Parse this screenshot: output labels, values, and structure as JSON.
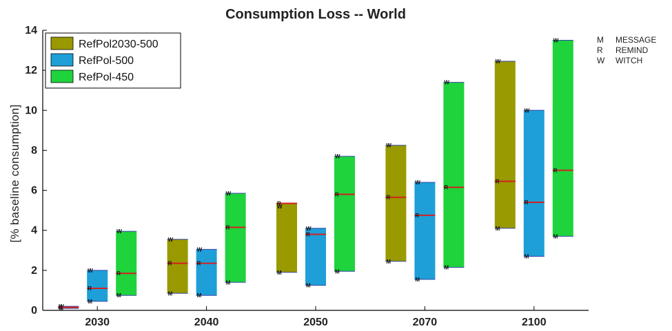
{
  "chart_data": {
    "type": "bar",
    "subtype": "floating-range",
    "title": "Consumption Loss -- World",
    "xlabel": "",
    "ylabel": "[% baseline consumption]",
    "ylim": [
      0,
      14
    ],
    "yticks": [
      0,
      2,
      4,
      6,
      8,
      10,
      12,
      14
    ],
    "categories": [
      "2030",
      "2040",
      "2050",
      "2070",
      "2100"
    ],
    "grid": false,
    "legend_position": "top-left",
    "series": [
      {
        "name": "RefPol2030-500",
        "color": "#999900",
        "ranges": [
          {
            "low": 0.1,
            "high": 0.2,
            "markers": [
              {
                "model": "M",
                "value": 0.1
              },
              {
                "model": "W",
                "value": 0.2
              },
              {
                "model": "R",
                "value": 0.15
              }
            ]
          },
          {
            "low": 0.85,
            "high": 3.55,
            "markers": [
              {
                "model": "W",
                "value": 3.55
              },
              {
                "model": "R",
                "value": 2.35
              },
              {
                "model": "M",
                "value": 0.85
              }
            ]
          },
          {
            "low": 1.9,
            "high": 5.35,
            "markers": [
              {
                "model": "R",
                "value": 5.35
              },
              {
                "model": "W",
                "value": 5.2
              },
              {
                "model": "M",
                "value": 1.9
              }
            ]
          },
          {
            "low": 2.45,
            "high": 8.25,
            "markers": [
              {
                "model": "W",
                "value": 8.25
              },
              {
                "model": "R",
                "value": 5.65
              },
              {
                "model": "M",
                "value": 2.45
              }
            ]
          },
          {
            "low": 4.1,
            "high": 12.45,
            "markers": [
              {
                "model": "W",
                "value": 12.45
              },
              {
                "model": "R",
                "value": 6.45
              },
              {
                "model": "M",
                "value": 4.1
              }
            ]
          }
        ]
      },
      {
        "name": "RefPol-500",
        "color": "#1e9fd8",
        "ranges": [
          {
            "low": 0.45,
            "high": 2.0,
            "markers": [
              {
                "model": "W",
                "value": 2.0
              },
              {
                "model": "R",
                "value": 1.1
              },
              {
                "model": "M",
                "value": 0.45
              }
            ]
          },
          {
            "low": 0.75,
            "high": 3.05,
            "markers": [
              {
                "model": "W",
                "value": 3.05
              },
              {
                "model": "R",
                "value": 2.35
              },
              {
                "model": "M",
                "value": 0.75
              }
            ]
          },
          {
            "low": 1.25,
            "high": 4.1,
            "markers": [
              {
                "model": "W",
                "value": 4.1
              },
              {
                "model": "R",
                "value": 3.8
              },
              {
                "model": "M",
                "value": 1.25
              }
            ]
          },
          {
            "low": 1.55,
            "high": 6.4,
            "markers": [
              {
                "model": "W",
                "value": 6.4
              },
              {
                "model": "R",
                "value": 4.75
              },
              {
                "model": "M",
                "value": 1.55
              }
            ]
          },
          {
            "low": 2.7,
            "high": 10.0,
            "markers": [
              {
                "model": "W",
                "value": 10.0
              },
              {
                "model": "R",
                "value": 5.4
              },
              {
                "model": "M",
                "value": 2.7
              }
            ]
          }
        ]
      },
      {
        "name": "RefPol-450",
        "color": "#1ed33c",
        "ranges": [
          {
            "low": 0.75,
            "high": 3.95,
            "markers": [
              {
                "model": "W",
                "value": 3.95
              },
              {
                "model": "R",
                "value": 1.85
              },
              {
                "model": "M",
                "value": 0.75
              }
            ]
          },
          {
            "low": 1.4,
            "high": 5.85,
            "markers": [
              {
                "model": "W",
                "value": 5.85
              },
              {
                "model": "R",
                "value": 4.15
              },
              {
                "model": "M",
                "value": 1.4
              }
            ]
          },
          {
            "low": 1.95,
            "high": 7.7,
            "markers": [
              {
                "model": "W",
                "value": 7.7
              },
              {
                "model": "R",
                "value": 5.8
              },
              {
                "model": "M",
                "value": 1.95
              }
            ]
          },
          {
            "low": 2.15,
            "high": 11.4,
            "markers": [
              {
                "model": "W",
                "value": 11.4
              },
              {
                "model": "R",
                "value": 6.15
              },
              {
                "model": "M",
                "value": 2.15
              }
            ]
          },
          {
            "low": 3.7,
            "high": 13.5,
            "markers": [
              {
                "model": "W",
                "value": 13.5
              },
              {
                "model": "R",
                "value": 7.0
              },
              {
                "model": "M",
                "value": 3.7
              }
            ]
          }
        ]
      }
    ],
    "model_key": [
      {
        "code": "M",
        "name": "MESSAGE"
      },
      {
        "code": "R",
        "name": "REMIND"
      },
      {
        "code": "W",
        "name": "WITCH"
      }
    ],
    "median_line_color": "#d42020"
  }
}
